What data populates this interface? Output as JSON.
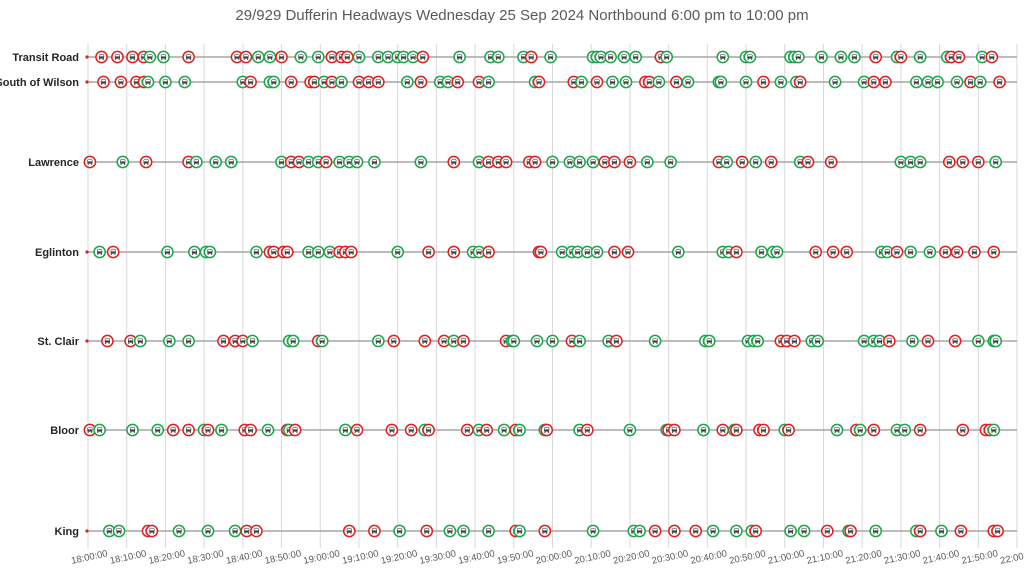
{
  "chart_data": {
    "type": "scatter",
    "title": "29/929 Dufferin Headways Wednesday 25 Sep 2024 Northbound 6:00 pm to 10:00 pm",
    "xlabel": "",
    "ylabel": "",
    "x_range": [
      "18:00:00",
      "22:00:00"
    ],
    "grid": true,
    "legend": "none",
    "x_ticks": [
      "18:00:00",
      "18:10:00",
      "18:20:00",
      "18:30:00",
      "18:40:00",
      "18:50:00",
      "19:00:00",
      "19:10:00",
      "19:20:00",
      "19:30:00",
      "19:40:00",
      "19:50:00",
      "20:00:00",
      "20:10:00",
      "20:20:00",
      "20:30:00",
      "20:40:00",
      "20:50:00",
      "21:00:00",
      "21:10:00",
      "21:20:00",
      "21:30:00",
      "21:40:00",
      "21:50:00",
      "22:00:00"
    ],
    "colors": {
      "route_29": "#1aa64a",
      "route_929": "#e02020"
    },
    "stops": [
      {
        "name": "Transit Road",
        "x": [
          3.5,
          7.6,
          11.5,
          14.4,
          16.0,
          19.5,
          26.0,
          38.5,
          40.8,
          44.0,
          47.0,
          50.0,
          55.0,
          59.5,
          63.0,
          65.5,
          67.0,
          70.0,
          75.0,
          77.5,
          80.0,
          81.5,
          84.0,
          86.5,
          96.0,
          104.0,
          106.0,
          112.5,
          114.5,
          119.5,
          130.5,
          131.5,
          132.5,
          135.0,
          138.5,
          141.5,
          148.0,
          149.5,
          164.0,
          170.0,
          171.0,
          181.5,
          182.5,
          183.5,
          189.5,
          194.5,
          198.0,
          203.5,
          209.0,
          210.0,
          215.0,
          222.0,
          223.0,
          225.0,
          231.0,
          233.5
        ],
        "series": [
          "929",
          "929",
          "929",
          "929",
          "29",
          "29",
          "929",
          "929",
          "929",
          "29",
          "29",
          "929",
          "29",
          "29",
          "929",
          "929",
          "929",
          "29",
          "29",
          "29",
          "29",
          "29",
          "29",
          "929",
          "29",
          "29",
          "29",
          "29",
          "929",
          "29",
          "29",
          "29",
          "29",
          "29",
          "29",
          "29",
          "929",
          "29",
          "29",
          "29",
          "29",
          "29",
          "29",
          "29",
          "29",
          "29",
          "29",
          "929",
          "29",
          "929",
          "29",
          "29",
          "929",
          "929",
          "29",
          "929"
        ]
      },
      {
        "name": "South of Wilson",
        "x": [
          4.0,
          8.5,
          12.5,
          14.5,
          15.5,
          20.0,
          25.0,
          40.0,
          42.0,
          47.0,
          48.0,
          52.5,
          57.5,
          58.5,
          61.0,
          63.0,
          65.5,
          70.0,
          72.5,
          75.0,
          82.5,
          86.0,
          91.0,
          93.0,
          95.5,
          101.0,
          103.5,
          115.5,
          116.5,
          125.5,
          127.5,
          131.5,
          135.5,
          139.0,
          144.0,
          145.0,
          147.5,
          152.0,
          155.0,
          163.0,
          163.5,
          170.0,
          174.5,
          179.0,
          183.0,
          184.0,
          193.0,
          200.5,
          203.0,
          206.0,
          214.0,
          217.0,
          219.5,
          224.5,
          228.0,
          230.5,
          235.5
        ],
        "series": [
          "929",
          "929",
          "929",
          "929",
          "29",
          "29",
          "29",
          "29",
          "929",
          "29",
          "29",
          "929",
          "929",
          "929",
          "29",
          "929",
          "29",
          "929",
          "929",
          "929",
          "29",
          "929",
          "29",
          "29",
          "929",
          "929",
          "29",
          "29",
          "929",
          "929",
          "29",
          "929",
          "29",
          "29",
          "929",
          "929",
          "29",
          "929",
          "29",
          "29",
          "29",
          "29",
          "929",
          "29",
          "29",
          "929",
          "29",
          "29",
          "929",
          "929",
          "29",
          "29",
          "29",
          "29",
          "929",
          "29",
          "929"
        ]
      },
      {
        "name": "Lawrence",
        "x": [
          0.5,
          9.0,
          15.0,
          26.0,
          28.0,
          33.0,
          37.0,
          50.0,
          52.5,
          54.5,
          57.0,
          59.5,
          61.5,
          65.0,
          67.5,
          69.5,
          74.0,
          86.0,
          94.5,
          101.0,
          103.5,
          106.0,
          108.0,
          114.0,
          115.5,
          120.0,
          124.5,
          127.0,
          130.5,
          133.5,
          136.0,
          140.0,
          144.5,
          150.5,
          163.0,
          165.0,
          169.0,
          172.5,
          176.5,
          184.0,
          186.0,
          192.0,
          210.0,
          212.5,
          215.0,
          222.5,
          226.0,
          230.0,
          234.5
        ],
        "series": [
          "929",
          "29",
          "929",
          "929",
          "29",
          "29",
          "29",
          "29",
          "929",
          "929",
          "29",
          "29",
          "929",
          "29",
          "29",
          "29",
          "29",
          "29",
          "929",
          "29",
          "929",
          "929",
          "929",
          "929",
          "929",
          "29",
          "29",
          "29",
          "29",
          "929",
          "929",
          "929",
          "29",
          "29",
          "929",
          "29",
          "929",
          "29",
          "929",
          "29",
          "929",
          "929",
          "29",
          "29",
          "29",
          "929",
          "929",
          "929",
          "29"
        ]
      },
      {
        "name": "Eglinton",
        "x": [
          3.0,
          6.5,
          20.5,
          27.5,
          30.5,
          31.5,
          43.5,
          47.0,
          48.0,
          50.5,
          51.5,
          57.0,
          59.5,
          62.5,
          65.0,
          66.5,
          68.0,
          80.0,
          88.0,
          94.5,
          99.5,
          101.0,
          103.5,
          116.5,
          117.0,
          122.5,
          125.0,
          126.5,
          129.0,
          131.5,
          136.0,
          139.5,
          152.5,
          164.0,
          165.5,
          167.5,
          174.0,
          177.0,
          178.0,
          188.0,
          192.5,
          196.0,
          205.0,
          206.5,
          209.0,
          212.5,
          217.5,
          221.5,
          224.5,
          229.0,
          234.0
        ],
        "series": [
          "29",
          "929",
          "29",
          "29",
          "29",
          "29",
          "29",
          "929",
          "929",
          "929",
          "929",
          "29",
          "29",
          "29",
          "929",
          "929",
          "929",
          "29",
          "929",
          "929",
          "29",
          "29",
          "929",
          "929",
          "929",
          "29",
          "29",
          "29",
          "29",
          "29",
          "929",
          "929",
          "29",
          "29",
          "29",
          "929",
          "29",
          "29",
          "29",
          "929",
          "929",
          "929",
          "29",
          "29",
          "929",
          "29",
          "29",
          "929",
          "929",
          "929",
          "929"
        ]
      },
      {
        "name": "St. Clair",
        "x": [
          5.0,
          11.0,
          13.5,
          21.0,
          26.0,
          35.0,
          38.0,
          40.0,
          42.5,
          52.0,
          53.0,
          59.5,
          60.5,
          75.0,
          79.0,
          87.0,
          92.0,
          94.5,
          97.0,
          108.0,
          109.5,
          110.0,
          116.0,
          120.0,
          125.0,
          127.0,
          134.5,
          136.5,
          146.5,
          159.5,
          160.5,
          170.5,
          172.0,
          173.0,
          179.0,
          180.5,
          182.5,
          187.0,
          188.5,
          200.5,
          203.0,
          204.5,
          207.0,
          213.0,
          217.0,
          224.0,
          230.0,
          234.0,
          234.5
        ],
        "series": [
          "929",
          "929",
          "29",
          "29",
          "29",
          "929",
          "929",
          "929",
          "29",
          "29",
          "29",
          "929",
          "29",
          "29",
          "929",
          "929",
          "929",
          "29",
          "929",
          "929",
          "29",
          "29",
          "29",
          "29",
          "929",
          "29",
          "29",
          "929",
          "29",
          "29",
          "29",
          "29",
          "29",
          "29",
          "929",
          "929",
          "929",
          "29",
          "29",
          "29",
          "29",
          "29",
          "929",
          "29",
          "929",
          "929",
          "29",
          "29",
          "29"
        ]
      },
      {
        "name": "Bloor",
        "x": [
          0.5,
          3.0,
          11.5,
          18.0,
          22.0,
          26.0,
          30.0,
          31.0,
          34.5,
          40.5,
          42.0,
          46.5,
          51.5,
          52.0,
          53.5,
          66.5,
          69.5,
          78.5,
          83.5,
          87.0,
          88.0,
          98.0,
          101.0,
          103.0,
          107.5,
          110.5,
          111.5,
          118.0,
          118.5,
          127.0,
          129.0,
          140.0,
          149.5,
          150.0,
          151.5,
          159.0,
          164.0,
          167.0,
          167.5,
          173.5,
          174.5,
          180.0,
          181.0,
          193.5,
          198.5,
          199.5,
          203.0,
          209.0,
          211.0,
          215.0,
          226.0,
          232.0,
          233.0,
          234.0
        ],
        "series": [
          "929",
          "29",
          "29",
          "29",
          "929",
          "929",
          "29",
          "929",
          "29",
          "929",
          "929",
          "29",
          "929",
          "29",
          "929",
          "29",
          "929",
          "929",
          "929",
          "29",
          "929",
          "929",
          "29",
          "929",
          "29",
          "929",
          "29",
          "29",
          "929",
          "29",
          "929",
          "29",
          "29",
          "929",
          "929",
          "29",
          "929",
          "29",
          "929",
          "929",
          "929",
          "29",
          "929",
          "29",
          "929",
          "29",
          "929",
          "29",
          "29",
          "929",
          "929",
          "929",
          "929",
          "29"
        ]
      },
      {
        "name": "King",
        "x": [
          5.5,
          8.0,
          15.5,
          16.5,
          23.5,
          31.0,
          38.0,
          41.0,
          43.5,
          67.5,
          74.0,
          80.5,
          87.5,
          93.5,
          97.0,
          103.5,
          110.5,
          111.5,
          118.0,
          130.5,
          141.0,
          142.5,
          146.5,
          151.5,
          157.0,
          161.5,
          167.5,
          171.5,
          172.5,
          181.5,
          185.0,
          191.0,
          196.5,
          197.0,
          203.5,
          214.0,
          215.0,
          220.5,
          225.5,
          234.0,
          235.0
        ],
        "series": [
          "29",
          "29",
          "929",
          "929",
          "29",
          "29",
          "29",
          "929",
          "929",
          "929",
          "929",
          "29",
          "929",
          "29",
          "29",
          "29",
          "929",
          "29",
          "929",
          "29",
          "29",
          "29",
          "929",
          "929",
          "929",
          "29",
          "29",
          "29",
          "929",
          "29",
          "29",
          "929",
          "29",
          "929",
          "29",
          "29",
          "929",
          "29",
          "929",
          "929",
          "929"
        ]
      }
    ]
  }
}
